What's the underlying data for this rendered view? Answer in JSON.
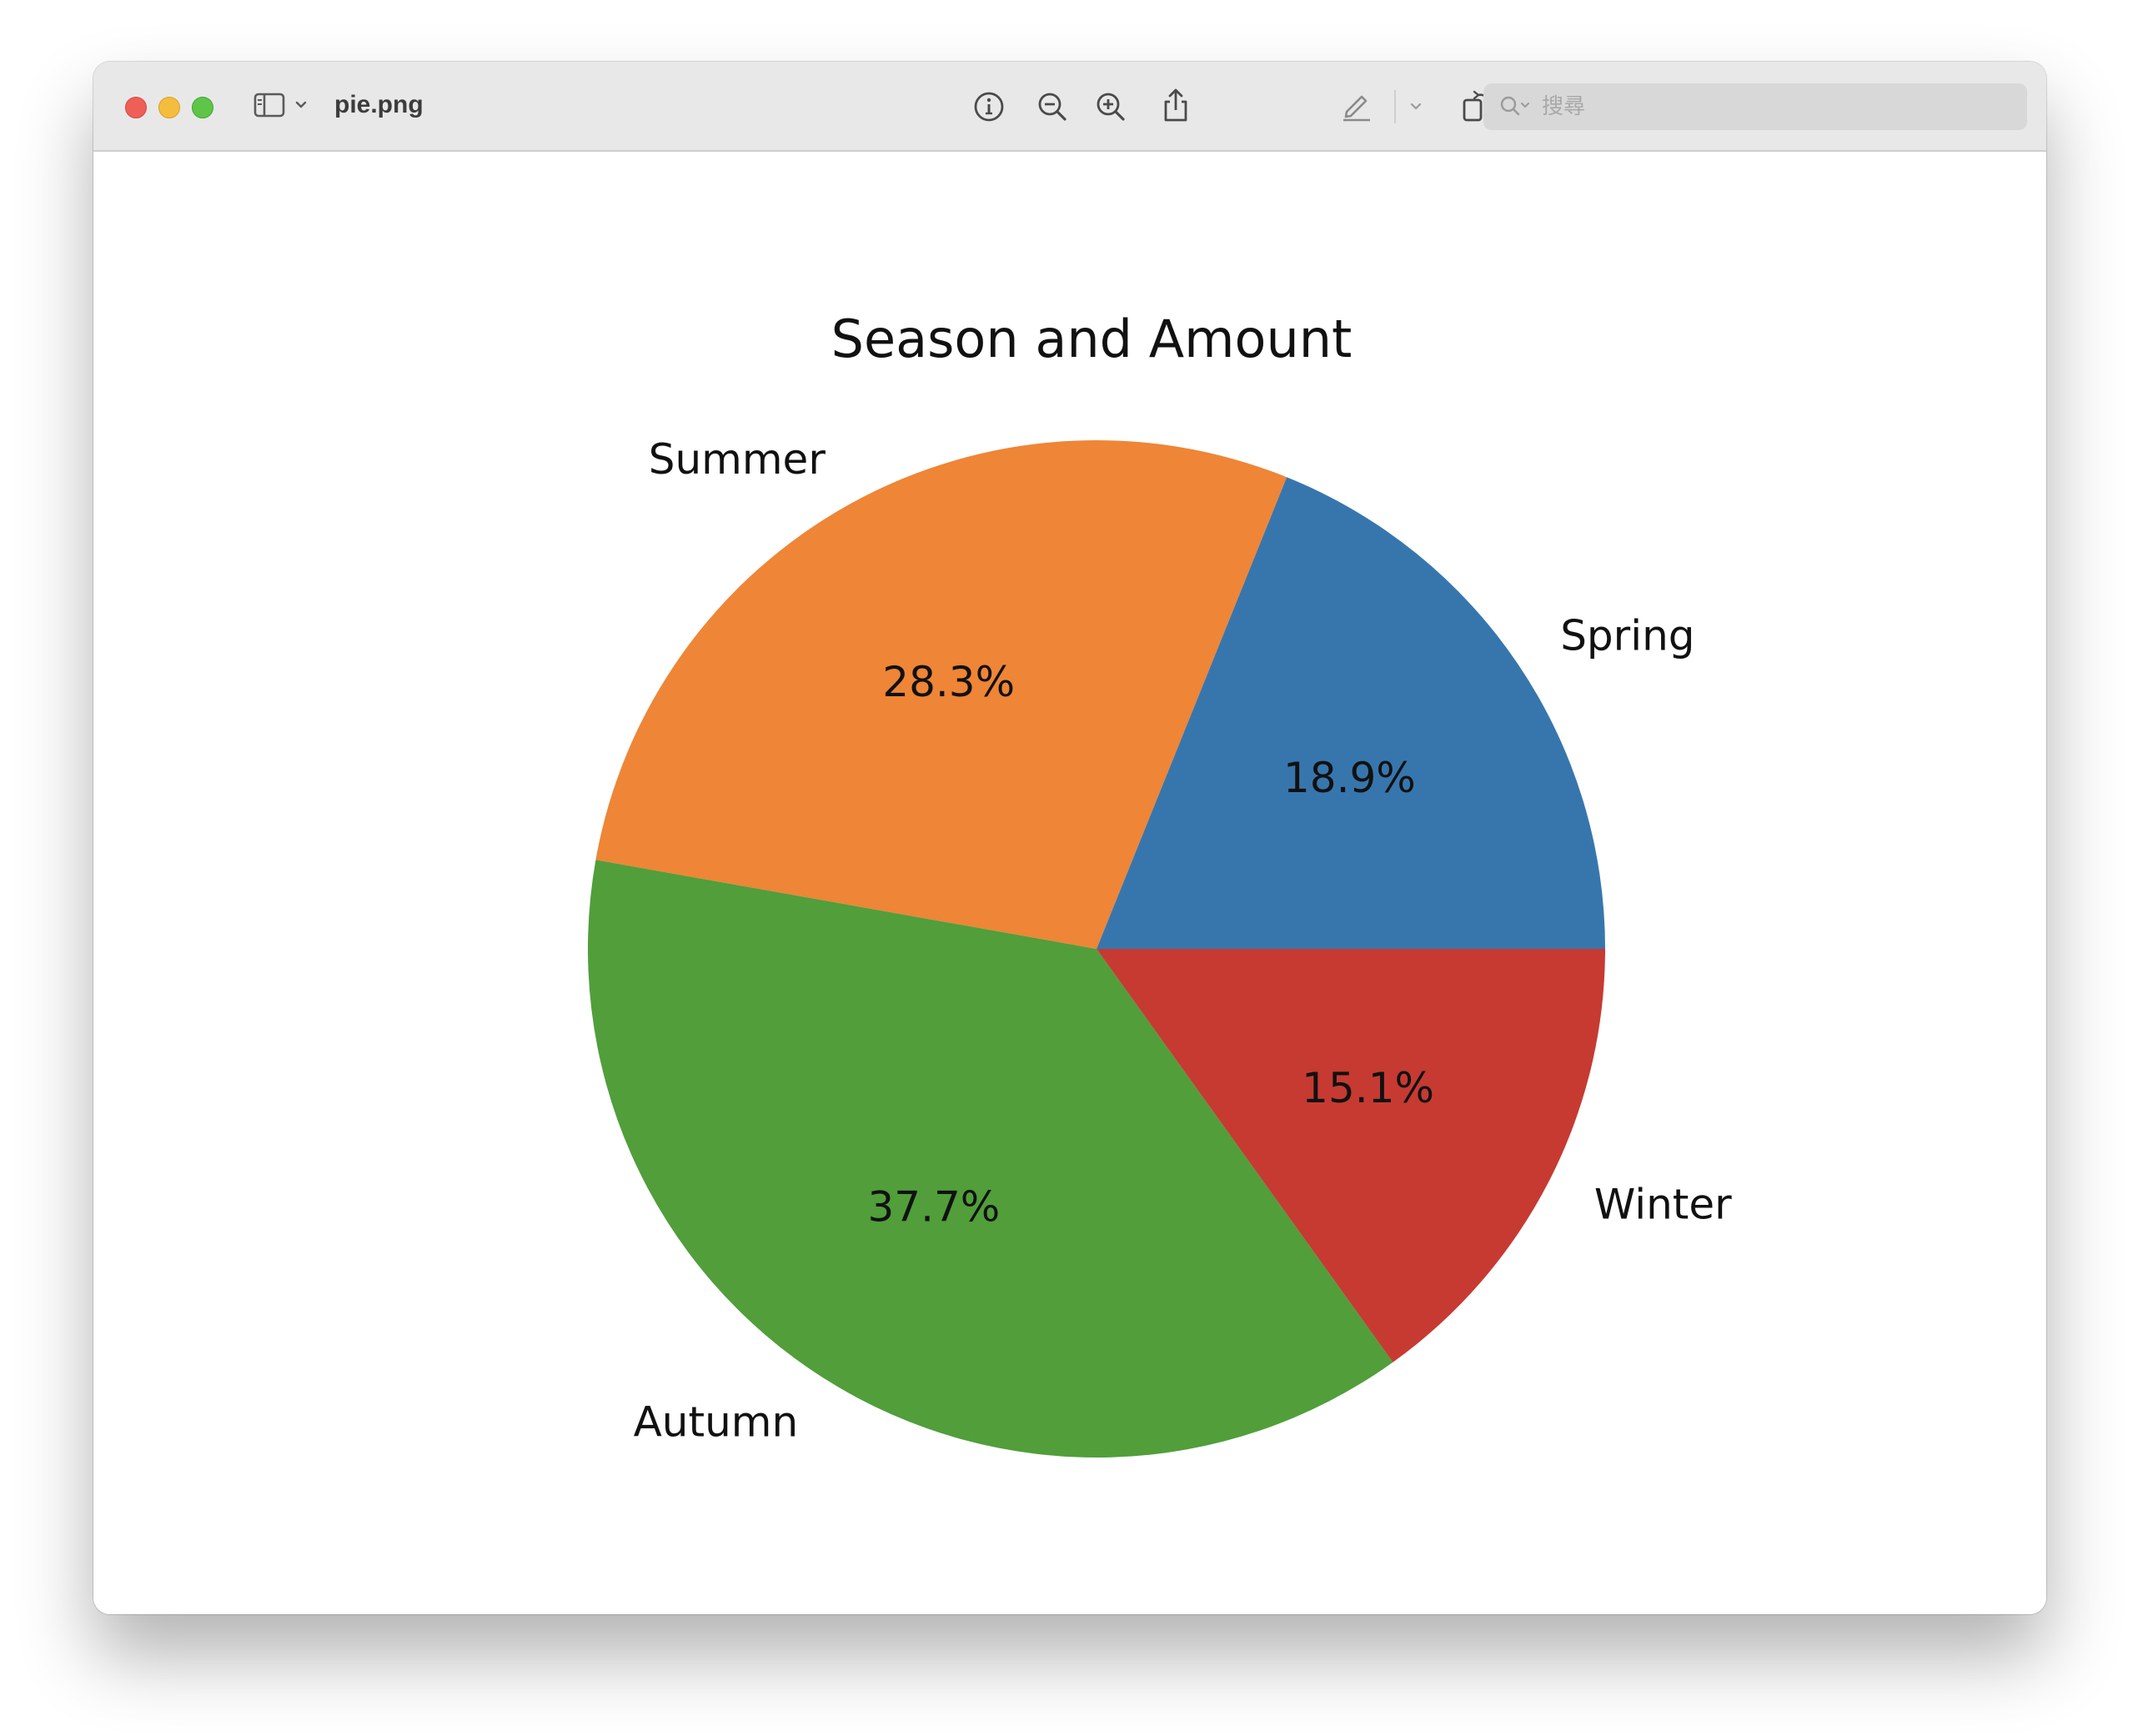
{
  "window": {
    "filename": "pie.png"
  },
  "toolbar": {
    "icons": [
      "sidebar-toggle-icon",
      "chevron-down-icon",
      "info-icon",
      "zoom-out-icon",
      "zoom-in-icon",
      "share-icon",
      "markup-pen-icon",
      "chevron-down-icon",
      "rotate-icon",
      "annotate-icon"
    ]
  },
  "search": {
    "placeholder": "搜尋"
  },
  "colors": {
    "Spring": "#3776ad",
    "Summer": "#ef8536",
    "Autumn": "#519e3b",
    "Winter": "#c63a32"
  },
  "chart_data": {
    "type": "pie",
    "title": "Season and Amount",
    "start_angle_deg": 0,
    "direction": "counterclockwise",
    "slices": [
      {
        "label": "Spring",
        "percent": 18.9,
        "pct_label": "18.9%",
        "color": "#3776ad"
      },
      {
        "label": "Summer",
        "percent": 28.3,
        "pct_label": "28.3%",
        "color": "#ef8536"
      },
      {
        "label": "Autumn",
        "percent": 37.7,
        "pct_label": "37.7%",
        "color": "#519e3b"
      },
      {
        "label": "Winter",
        "percent": 15.1,
        "pct_label": "15.1%",
        "color": "#c63a32"
      }
    ]
  }
}
